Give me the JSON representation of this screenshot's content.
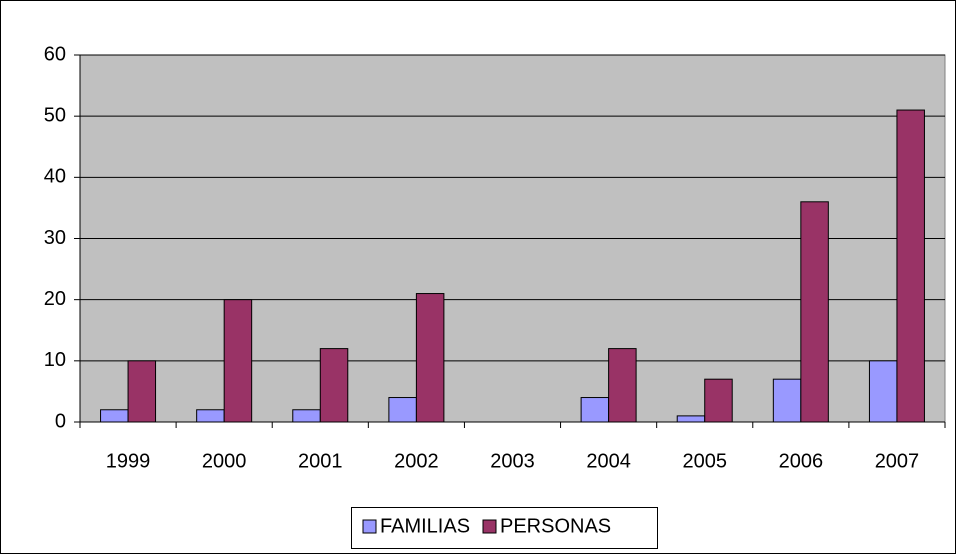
{
  "chart_data": {
    "type": "bar",
    "categories": [
      "1999",
      "2000",
      "2001",
      "2002",
      "2003",
      "2004",
      "2005",
      "2006",
      "2007"
    ],
    "series": [
      {
        "name": "FAMILIAS",
        "color": "#9999ff",
        "values": [
          2,
          2,
          2,
          4,
          0,
          4,
          1,
          7,
          10
        ]
      },
      {
        "name": "PERSONAS",
        "color": "#993366",
        "values": [
          10,
          20,
          12,
          21,
          0,
          12,
          7,
          36,
          51
        ]
      }
    ],
    "ylim": [
      0,
      60
    ],
    "yticks": [
      0,
      10,
      20,
      30,
      40,
      50,
      60
    ],
    "grid": true,
    "legend": "bottom"
  }
}
